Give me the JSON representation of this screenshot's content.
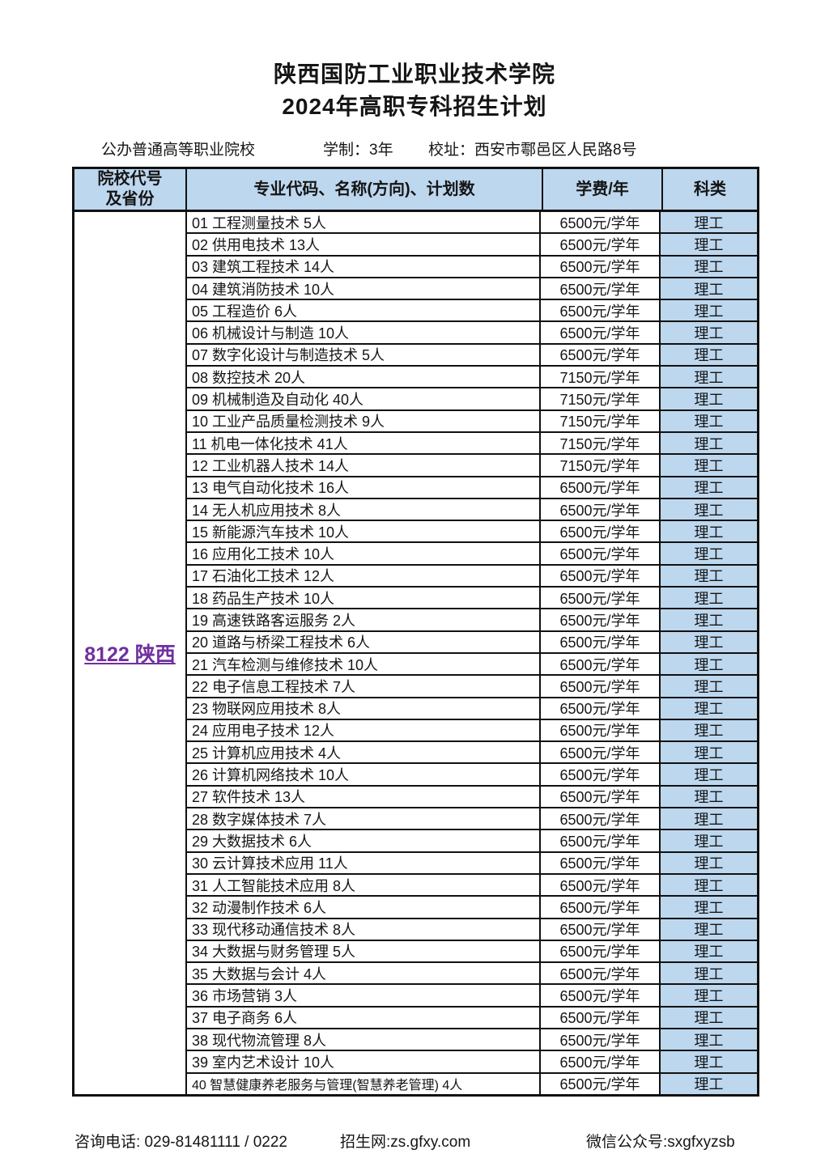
{
  "header": {
    "title": "陕西国防工业职业技术学院",
    "subtitle": "2024年高职专科招生计划",
    "school_type": "公办普通高等职业院校",
    "duration": "学制：3年",
    "address": "校址：西安市鄠邑区人民路8号"
  },
  "table": {
    "columns": {
      "code_province_line1": "院校代号",
      "code_province_line2": "及省份",
      "major": "专业代码、名称(方向)、计划数",
      "fee": "学费/年",
      "category": "科类"
    },
    "college_code": "8122 陕西",
    "rows": [
      {
        "major": "01 工程测量技术 5人",
        "fee": "6500元/学年",
        "category": "理工"
      },
      {
        "major": "02 供用电技术 13人",
        "fee": "6500元/学年",
        "category": "理工"
      },
      {
        "major": "03 建筑工程技术 14人",
        "fee": "6500元/学年",
        "category": "理工"
      },
      {
        "major": "04 建筑消防技术 10人",
        "fee": "6500元/学年",
        "category": "理工"
      },
      {
        "major": "05 工程造价 6人",
        "fee": "6500元/学年",
        "category": "理工"
      },
      {
        "major": "06 机械设计与制造 10人",
        "fee": "6500元/学年",
        "category": "理工"
      },
      {
        "major": "07 数字化设计与制造技术 5人",
        "fee": "6500元/学年",
        "category": "理工"
      },
      {
        "major": "08 数控技术 20人",
        "fee": "7150元/学年",
        "category": "理工"
      },
      {
        "major": "09 机械制造及自动化 40人",
        "fee": "7150元/学年",
        "category": "理工"
      },
      {
        "major": "10 工业产品质量检测技术 9人",
        "fee": "7150元/学年",
        "category": "理工"
      },
      {
        "major": "11 机电一体化技术 41人",
        "fee": "7150元/学年",
        "category": "理工"
      },
      {
        "major": "12 工业机器人技术 14人",
        "fee": "7150元/学年",
        "category": "理工"
      },
      {
        "major": "13 电气自动化技术 16人",
        "fee": "6500元/学年",
        "category": "理工"
      },
      {
        "major": "14 无人机应用技术 8人",
        "fee": "6500元/学年",
        "category": "理工"
      },
      {
        "major": "15 新能源汽车技术 10人",
        "fee": "6500元/学年",
        "category": "理工"
      },
      {
        "major": "16 应用化工技术 10人",
        "fee": "6500元/学年",
        "category": "理工"
      },
      {
        "major": "17 石油化工技术 12人",
        "fee": "6500元/学年",
        "category": "理工"
      },
      {
        "major": "18 药品生产技术 10人",
        "fee": "6500元/学年",
        "category": "理工"
      },
      {
        "major": "19 高速铁路客运服务 2人",
        "fee": "6500元/学年",
        "category": "理工"
      },
      {
        "major": "20 道路与桥梁工程技术 6人",
        "fee": "6500元/学年",
        "category": "理工"
      },
      {
        "major": "21 汽车检测与维修技术 10人",
        "fee": "6500元/学年",
        "category": "理工"
      },
      {
        "major": "22 电子信息工程技术 7人",
        "fee": "6500元/学年",
        "category": "理工"
      },
      {
        "major": "23 物联网应用技术 8人",
        "fee": "6500元/学年",
        "category": "理工"
      },
      {
        "major": "24 应用电子技术 12人",
        "fee": "6500元/学年",
        "category": "理工"
      },
      {
        "major": "25 计算机应用技术 4人",
        "fee": "6500元/学年",
        "category": "理工"
      },
      {
        "major": "26 计算机网络技术 10人",
        "fee": "6500元/学年",
        "category": "理工"
      },
      {
        "major": "27 软件技术 13人",
        "fee": "6500元/学年",
        "category": "理工"
      },
      {
        "major": "28 数字媒体技术 7人",
        "fee": "6500元/学年",
        "category": "理工"
      },
      {
        "major": "29 大数据技术 6人",
        "fee": "6500元/学年",
        "category": "理工"
      },
      {
        "major": "30 云计算技术应用 11人",
        "fee": "6500元/学年",
        "category": "理工"
      },
      {
        "major": "31 人工智能技术应用 8人",
        "fee": "6500元/学年",
        "category": "理工"
      },
      {
        "major": "32 动漫制作技术 6人",
        "fee": "6500元/学年",
        "category": "理工"
      },
      {
        "major": "33 现代移动通信技术 8人",
        "fee": "6500元/学年",
        "category": "理工"
      },
      {
        "major": "34 大数据与财务管理 5人",
        "fee": "6500元/学年",
        "category": "理工"
      },
      {
        "major": "35 大数据与会计 4人",
        "fee": "6500元/学年",
        "category": "理工"
      },
      {
        "major": "36 市场营销 3人",
        "fee": "6500元/学年",
        "category": "理工"
      },
      {
        "major": "37 电子商务 6人",
        "fee": "6500元/学年",
        "category": "理工"
      },
      {
        "major": "38 现代物流管理 8人",
        "fee": "6500元/学年",
        "category": "理工"
      },
      {
        "major": "39 室内艺术设计 10人",
        "fee": "6500元/学年",
        "category": "理工"
      },
      {
        "major": "40 智慧健康养老服务与管理(智慧养老管理) 4人",
        "fee": "6500元/学年",
        "category": "理工"
      }
    ]
  },
  "footer": {
    "phone": "咨询电话: 029-81481111 / 0222",
    "website": "招生网:zs.gfxy.com",
    "wechat": "微信公众号:sxgfxyzsb"
  },
  "colors": {
    "header_bg": "#bdd7ee",
    "category_bg": "#bdd7ee",
    "college_code_color": "#7030a0",
    "border": "#111111"
  }
}
